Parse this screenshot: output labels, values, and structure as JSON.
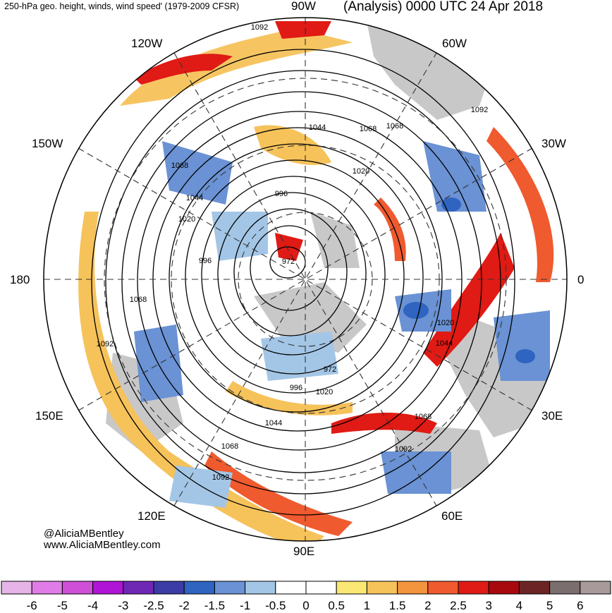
{
  "header": {
    "left_title": "250-hPa geo. height, winds, wind speed' (1979-2009 CFSR)",
    "right_title": "(Analysis) 0000 UTC 24 Apr 2018"
  },
  "longitude_labels": {
    "top": "90W",
    "upper_left": "120W",
    "upper_right": "60W",
    "left_upper": "150W",
    "right_upper": "30W",
    "left": "180",
    "right": "0",
    "left_lower": "150E",
    "right_lower": "30E",
    "lower_left": "120E",
    "lower_right": "60E",
    "bottom": "90E"
  },
  "contour_labels": [
    "1092",
    "1092",
    "1068",
    "1068",
    "1044",
    "1044",
    "1020",
    "1020",
    "996",
    "996",
    "972",
    "972",
    "1020",
    "1044",
    "1068",
    "1092",
    "1068",
    "1092",
    "1020",
    "996",
    "1044",
    "1068",
    "1092",
    "1068"
  ],
  "credits": {
    "handle": "@AliciaMBentley",
    "website": "www.AliciaMBentley.com"
  },
  "colorbar": {
    "colors": [
      "#e6b4e6",
      "#e07ce6",
      "#cf4fd6",
      "#b014d6",
      "#6e28b4",
      "#3c3ca6",
      "#2f64c0",
      "#6a92d4",
      "#a4c6e6",
      "#ffffff",
      "#ffffff",
      "#fbe874",
      "#f6c25a",
      "#f3943f",
      "#ef5a2e",
      "#e01a14",
      "#a8090f",
      "#6c2424",
      "#7b6e6e",
      "#a89a9a"
    ],
    "labels": [
      "-6",
      "-5",
      "-4",
      "-3",
      "-2.5",
      "-2",
      "-1.5",
      "-1",
      "-0.5",
      "0",
      "0.5",
      "1",
      "1.5",
      "2",
      "2.5",
      "3",
      "4",
      "5",
      "6"
    ]
  },
  "map_colors": {
    "land": "#c8c8c8",
    "positive_weak": "#fbe874",
    "positive_mid": "#f6c25a",
    "positive_strong": "#ef5a2e",
    "positive_max": "#a8090f",
    "negative_weak": "#a4c6e6",
    "negative_mid": "#6a92d4",
    "negative_strong": "#2f64c0"
  }
}
